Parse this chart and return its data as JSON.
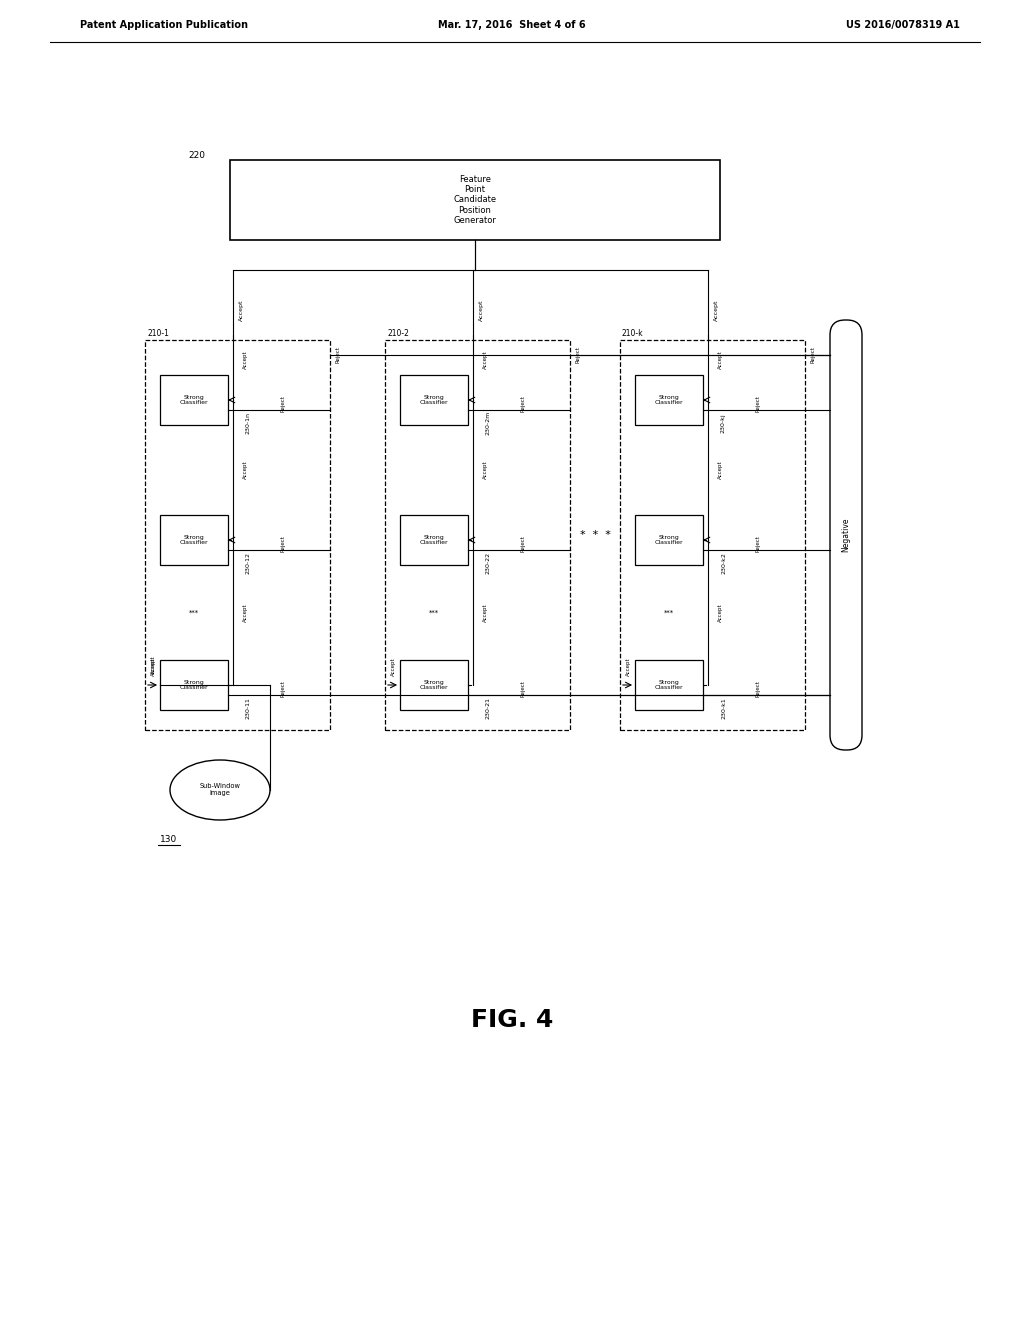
{
  "title_left": "Patent Application Publication",
  "title_mid": "Mar. 17, 2016  Sheet 4 of 6",
  "title_right": "US 2016/0078319 A1",
  "fig_label": "FIG. 4",
  "bg_color": "#ffffff"
}
